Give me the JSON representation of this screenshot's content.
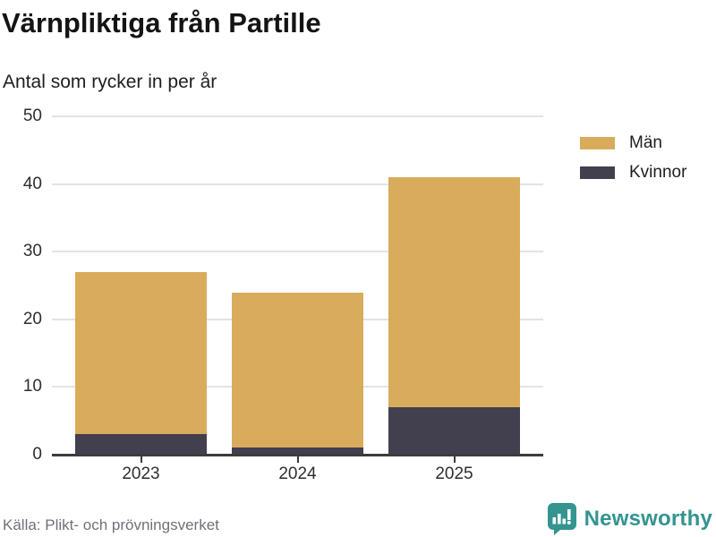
{
  "header": {
    "title": "Värnpliktiga från Partille",
    "subtitle": "Antal som rycker in per år"
  },
  "chart_data": {
    "type": "bar",
    "stacked": true,
    "title": "Värnpliktiga från Partille",
    "subtitle": "Antal som rycker in per år",
    "categories": [
      "2023",
      "2024",
      "2025"
    ],
    "series": [
      {
        "name": "Män",
        "color": "#d9ab5c",
        "values": [
          24,
          23,
          34
        ]
      },
      {
        "name": "Kvinnor",
        "color": "#423f4f",
        "values": [
          3,
          1,
          7
        ]
      }
    ],
    "stack_order_bottom_to_top": [
      "Kvinnor",
      "Män"
    ],
    "totals": [
      27,
      24,
      41
    ],
    "xlabel": "",
    "ylabel": "",
    "ylim": [
      0,
      50
    ],
    "yticks": [
      0,
      10,
      20,
      30,
      40,
      50
    ],
    "grid": true,
    "legend_position": "right"
  },
  "legend": {
    "items": [
      {
        "label": "Män",
        "color": "#d9ab5c"
      },
      {
        "label": "Kvinnor",
        "color": "#423f4f"
      }
    ]
  },
  "footer": {
    "source": "Källa: Plikt- och prövningsverket",
    "brand": "Newsworthy"
  },
  "colors": {
    "men": "#d9ab5c",
    "women": "#423f4f",
    "grid": "#e3e3e3",
    "axis": "#3d3d3d",
    "brand_teal": "#339490",
    "source_gray": "#70707a"
  },
  "icons": {
    "brand_logo": "bar-chart-speech-bubble-icon"
  }
}
